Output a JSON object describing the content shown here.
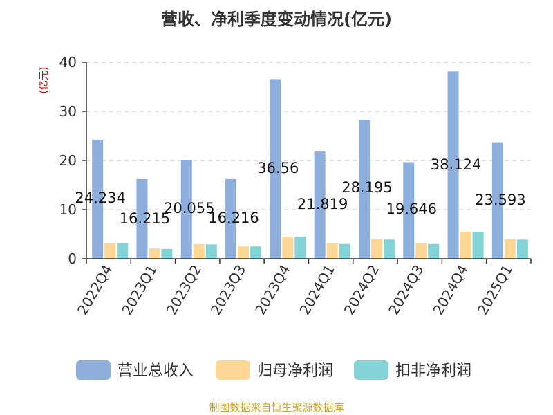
{
  "title": "营收、净利季度变动情况(亿元)",
  "source": "制图数据来自恒生聚源数据库",
  "colors": {
    "revenue": "#8eaedc",
    "net_profit": "#fdd795",
    "net_profit_ex": "#84d3d6",
    "ylabel": "#dd0000",
    "source": "#c9a227",
    "grid": "#bbbbbb",
    "axis": "#333333"
  },
  "chart_data": {
    "type": "bar",
    "title": "营收、净利季度变动情况(亿元)",
    "ylabel": "(亿元)",
    "xlabel": "",
    "ylim": [
      0,
      40
    ],
    "yticks": [
      0,
      10,
      20,
      30,
      40
    ],
    "grid": true,
    "legend_position": "bottom",
    "categories": [
      "2022Q4",
      "2023Q1",
      "2023Q2",
      "2023Q3",
      "2023Q4",
      "2024Q1",
      "2024Q2",
      "2024Q3",
      "2024Q4",
      "2025Q1"
    ],
    "series": [
      {
        "name": "营业总收入",
        "color": "#8eaedc",
        "values": [
          24.234,
          16.215,
          20.055,
          16.216,
          36.56,
          21.819,
          28.195,
          19.646,
          38.124,
          23.593
        ],
        "labels": [
          "24.234",
          "16.215",
          "20.055",
          "16.216",
          "36.56",
          "21.819",
          "28.195",
          "19.646",
          "38.124",
          "23.593"
        ]
      },
      {
        "name": "归母净利润",
        "color": "#fdd795",
        "values": [
          3.2,
          2.1,
          3.0,
          2.5,
          4.5,
          3.1,
          4.0,
          3.1,
          5.5,
          4.0
        ]
      },
      {
        "name": "扣非净利润",
        "color": "#84d3d6",
        "values": [
          3.1,
          2.0,
          2.9,
          2.5,
          4.5,
          3.0,
          3.9,
          3.0,
          5.5,
          3.9
        ]
      }
    ]
  }
}
